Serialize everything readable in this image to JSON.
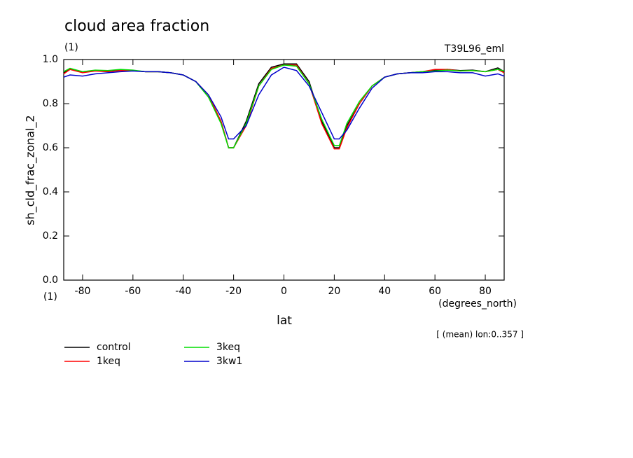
{
  "chart_data": {
    "type": "line",
    "title": "cloud area fraction",
    "subtitle": "(1)",
    "annotation": "T39L96_eml",
    "y_label": "sh_cld_frac_zonal_2",
    "y_units": "(1)",
    "x_label": "lat",
    "x_units": "(degrees_north)",
    "footnote": "[ (mean) lon:0..357 ]",
    "x": [
      -87.5,
      -85,
      -80,
      -75,
      -70,
      -65,
      -60,
      -55,
      -50,
      -45,
      -40,
      -35,
      -30,
      -25,
      -22,
      -20,
      -15,
      -10,
      -5,
      0,
      5,
      10,
      15,
      20,
      22,
      25,
      30,
      35,
      40,
      45,
      50,
      55,
      60,
      65,
      70,
      75,
      80,
      85,
      87.5
    ],
    "series": [
      {
        "name": "control",
        "color": "#000000",
        "values": [
          0.94,
          0.955,
          0.945,
          0.95,
          0.948,
          0.952,
          0.95,
          0.945,
          0.945,
          0.94,
          0.93,
          0.9,
          0.83,
          0.72,
          0.6,
          0.6,
          0.72,
          0.89,
          0.965,
          0.98,
          0.98,
          0.9,
          0.72,
          0.6,
          0.6,
          0.7,
          0.8,
          0.88,
          0.92,
          0.935,
          0.94,
          0.945,
          0.952,
          0.955,
          0.95,
          0.952,
          0.945,
          0.962,
          0.945
        ]
      },
      {
        "name": "1keq",
        "color": "#ff0000",
        "values": [
          0.935,
          0.955,
          0.94,
          0.948,
          0.945,
          0.95,
          0.95,
          0.945,
          0.945,
          0.94,
          0.93,
          0.9,
          0.84,
          0.72,
          0.6,
          0.6,
          0.7,
          0.88,
          0.96,
          0.975,
          0.975,
          0.89,
          0.71,
          0.595,
          0.595,
          0.69,
          0.8,
          0.88,
          0.92,
          0.935,
          0.94,
          0.945,
          0.955,
          0.955,
          0.948,
          0.95,
          0.945,
          0.955,
          0.94
        ]
      },
      {
        "name": "3keq",
        "color": "#00dd00",
        "values": [
          0.945,
          0.96,
          0.945,
          0.952,
          0.95,
          0.955,
          0.952,
          0.945,
          0.945,
          0.94,
          0.93,
          0.9,
          0.83,
          0.71,
          0.6,
          0.6,
          0.71,
          0.88,
          0.955,
          0.975,
          0.97,
          0.89,
          0.73,
          0.61,
          0.61,
          0.71,
          0.81,
          0.88,
          0.92,
          0.935,
          0.94,
          0.945,
          0.948,
          0.952,
          0.948,
          0.95,
          0.945,
          0.955,
          0.948
        ]
      },
      {
        "name": "3kw1",
        "color": "#0000cc",
        "values": [
          0.92,
          0.93,
          0.925,
          0.935,
          0.94,
          0.945,
          0.948,
          0.945,
          0.945,
          0.94,
          0.93,
          0.9,
          0.84,
          0.74,
          0.64,
          0.64,
          0.7,
          0.84,
          0.93,
          0.965,
          0.95,
          0.88,
          0.76,
          0.64,
          0.64,
          0.68,
          0.78,
          0.87,
          0.92,
          0.935,
          0.94,
          0.94,
          0.945,
          0.945,
          0.94,
          0.94,
          0.925,
          0.935,
          0.925
        ]
      }
    ],
    "xlim": [
      -87.5,
      87.5
    ],
    "xticks": [
      -80,
      -60,
      -40,
      -20,
      0,
      20,
      40,
      60,
      80
    ],
    "ylim": [
      0,
      1
    ],
    "yticks": [
      {
        "value": 0,
        "label": "0.0"
      },
      0.2,
      0.4,
      0.6,
      0.8,
      {
        "value": 1,
        "label": "1.0"
      }
    ],
    "grid": false
  }
}
